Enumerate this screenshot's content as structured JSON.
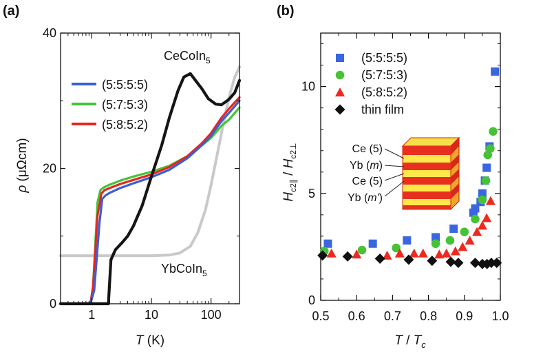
{
  "chart_data": [
    {
      "panel_label": "(a)",
      "type": "line",
      "xscale": "log",
      "xlabel": "T (K)",
      "xlabel_main": "T",
      "xlabel_unit": " (K)",
      "ylabel": "ρ (μΩcm)",
      "ylabel_main": "ρ",
      "ylabel_unit": " (μΩcm)",
      "xlim": [
        0.3,
        300
      ],
      "ylim": [
        0,
        40
      ],
      "xticks": [
        1,
        10,
        100
      ],
      "xtick_labels": [
        "1",
        "10",
        "100"
      ],
      "yticks": [
        0,
        20,
        40
      ],
      "ytick_labels": [
        "0",
        "20",
        "40"
      ],
      "legend_position": "upper-left",
      "legend": [
        {
          "label": "(5:5:5:5)",
          "color": "#3a5fd6"
        },
        {
          "label": "(5:7:5:3)",
          "color": "#44c435"
        },
        {
          "label": "(5:8:5:2)",
          "color": "#e8251f"
        }
      ],
      "annotations": [
        {
          "text": "CeCoIn",
          "sub": "5",
          "at": [
            60,
            36.2
          ]
        },
        {
          "text": "YbCoIn",
          "sub": "5",
          "at": [
            12,
            5.0
          ]
        }
      ],
      "series": [
        {
          "name": "YbCoIn5",
          "color": "#c9c9c9",
          "width": 4,
          "x": [
            0.3,
            1,
            10,
            20,
            30,
            45,
            60,
            80,
            100,
            130,
            160,
            200,
            250,
            300
          ],
          "y": [
            7.1,
            7.1,
            7.1,
            7.2,
            7.5,
            8.5,
            10.5,
            13.8,
            17.5,
            22.5,
            26.5,
            30.5,
            33.5,
            35
          ]
        },
        {
          "name": "(5:7:5:3)",
          "color": "#44c435",
          "width": 3.2,
          "x": [
            0.3,
            0.95,
            1.05,
            1.25,
            1.4,
            1.6,
            2,
            3,
            5,
            10,
            20,
            40,
            70,
            100,
            150,
            200,
            300
          ],
          "y": [
            0,
            0,
            2.5,
            15,
            16.8,
            17.2,
            17.6,
            18.2,
            18.8,
            19.5,
            20.4,
            21.8,
            23.4,
            24.5,
            26.3,
            27.2,
            29
          ]
        },
        {
          "name": "(5:8:5:2)",
          "color": "#e8251f",
          "width": 3.2,
          "x": [
            0.3,
            0.95,
            1.05,
            1.25,
            1.45,
            1.65,
            2,
            3,
            5,
            10,
            20,
            40,
            70,
            100,
            150,
            200,
            300
          ],
          "y": [
            0,
            0,
            2.5,
            13,
            16.3,
            16.8,
            17.1,
            17.7,
            18.3,
            19.1,
            20.2,
            21.8,
            23.7,
            25.2,
            27.5,
            28.8,
            30.5
          ]
        },
        {
          "name": "(5:5:5:5)",
          "color": "#3a5fd6",
          "width": 3.2,
          "x": [
            0.3,
            0.95,
            1.1,
            1.35,
            1.5,
            1.7,
            2,
            3,
            5,
            10,
            20,
            40,
            70,
            100,
            150,
            200,
            300
          ],
          "y": [
            0,
            0,
            2,
            12,
            15.5,
            16.0,
            16.4,
            17.1,
            17.8,
            18.7,
            19.8,
            21.5,
            23.4,
            24.8,
            27,
            28.2,
            30
          ]
        },
        {
          "name": "CeCoIn5",
          "color": "#151515",
          "width": 4.2,
          "x": [
            0.3,
            1.9,
            2.1,
            2.5,
            3.2,
            4,
            5,
            7,
            10,
            15,
            20,
            28,
            35,
            45,
            55,
            70,
            90,
            120,
            150,
            200,
            250,
            300
          ],
          "y": [
            0,
            0,
            6.5,
            8,
            9,
            10,
            11.5,
            14.5,
            18.8,
            23.5,
            27.5,
            31.5,
            33.5,
            34.0,
            33.0,
            31.8,
            30.3,
            29.5,
            29.4,
            30.2,
            31.2,
            33
          ]
        }
      ]
    },
    {
      "panel_label": "(b)",
      "type": "scatter",
      "xlabel": "T / T_c",
      "xlabel_main": "T",
      "xlabel_sep": " / ",
      "xlabel_den": "T",
      "xlabel_den_sub": "c",
      "ylabel": "H_c2∥ / H_c2⊥",
      "ylabel_num": "H",
      "ylabel_num_sub": "c2∥",
      "ylabel_sep": " / ",
      "ylabel_den": "H",
      "ylabel_den_sub": "c2⊥",
      "xlim": [
        0.5,
        1.0
      ],
      "ylim": [
        0,
        12.5
      ],
      "xticks": [
        0.5,
        0.6,
        0.7,
        0.8,
        0.9,
        1.0
      ],
      "xtick_labels": [
        "0.5",
        "0.6",
        "0.7",
        "0.8",
        "0.9",
        "1.0"
      ],
      "yticks": [
        0,
        5,
        10
      ],
      "ytick_labels": [
        "0",
        "5",
        "10"
      ],
      "legend_position": "upper-right",
      "legend": [
        {
          "label": "(5:5:5:5)",
          "color": "#3a66e0",
          "marker": "square"
        },
        {
          "label": "(5:7:5:3)",
          "color": "#46c236",
          "marker": "circle"
        },
        {
          "label": "(5:8:5:2)",
          "color": "#ee2a20",
          "marker": "triangle"
        },
        {
          "label": "thin film",
          "color": "#111111",
          "marker": "diamond"
        }
      ],
      "inset_labels": [
        {
          "text": "Ce (5)",
          "italic": ""
        },
        {
          "pre": "Yb (",
          "italic": "m",
          "post": ")"
        },
        {
          "text": "Ce (5)",
          "italic": ""
        },
        {
          "pre": "Yb (",
          "italic": "m'",
          "post": ")"
        }
      ],
      "series": [
        {
          "name": "(5:5:5:5)",
          "marker": "square",
          "color": "#3a66e0",
          "x": [
            0.52,
            0.645,
            0.74,
            0.82,
            0.87,
            0.925,
            0.93,
            0.945,
            0.95,
            0.957,
            0.962,
            0.97,
            0.985
          ],
          "y": [
            2.65,
            2.65,
            2.8,
            2.95,
            3.35,
            4.1,
            4.3,
            4.6,
            5.0,
            5.6,
            6.2,
            7.2,
            10.7
          ]
        },
        {
          "name": "(5:7:5:3)",
          "marker": "circle",
          "color": "#46c236",
          "x": [
            0.51,
            0.615,
            0.71,
            0.82,
            0.86,
            0.9,
            0.93,
            0.95,
            0.96,
            0.965,
            0.972,
            0.98
          ],
          "y": [
            2.3,
            2.35,
            2.45,
            2.65,
            2.8,
            3.2,
            3.8,
            4.7,
            5.6,
            6.8,
            7.1,
            7.9
          ]
        },
        {
          "name": "(5:8:5:2)",
          "marker": "triangle",
          "color": "#ee2a20",
          "x": [
            0.53,
            0.6,
            0.685,
            0.72,
            0.76,
            0.785,
            0.83,
            0.85,
            0.875,
            0.895,
            0.915,
            0.935,
            0.95,
            0.962,
            0.973
          ],
          "y": [
            2.2,
            2.15,
            2.1,
            2.2,
            2.2,
            2.2,
            2.15,
            2.2,
            2.3,
            2.5,
            2.8,
            3.2,
            3.5,
            3.85,
            4.65
          ]
        },
        {
          "name": "thin film",
          "marker": "diamond",
          "color": "#111111",
          "x": [
            0.505,
            0.575,
            0.665,
            0.745,
            0.81,
            0.862,
            0.883,
            0.93,
            0.95,
            0.963,
            0.975,
            0.99
          ],
          "y": [
            2.1,
            2.05,
            1.95,
            1.9,
            1.85,
            1.8,
            1.75,
            1.75,
            1.7,
            1.7,
            1.75,
            1.75
          ]
        }
      ]
    }
  ]
}
